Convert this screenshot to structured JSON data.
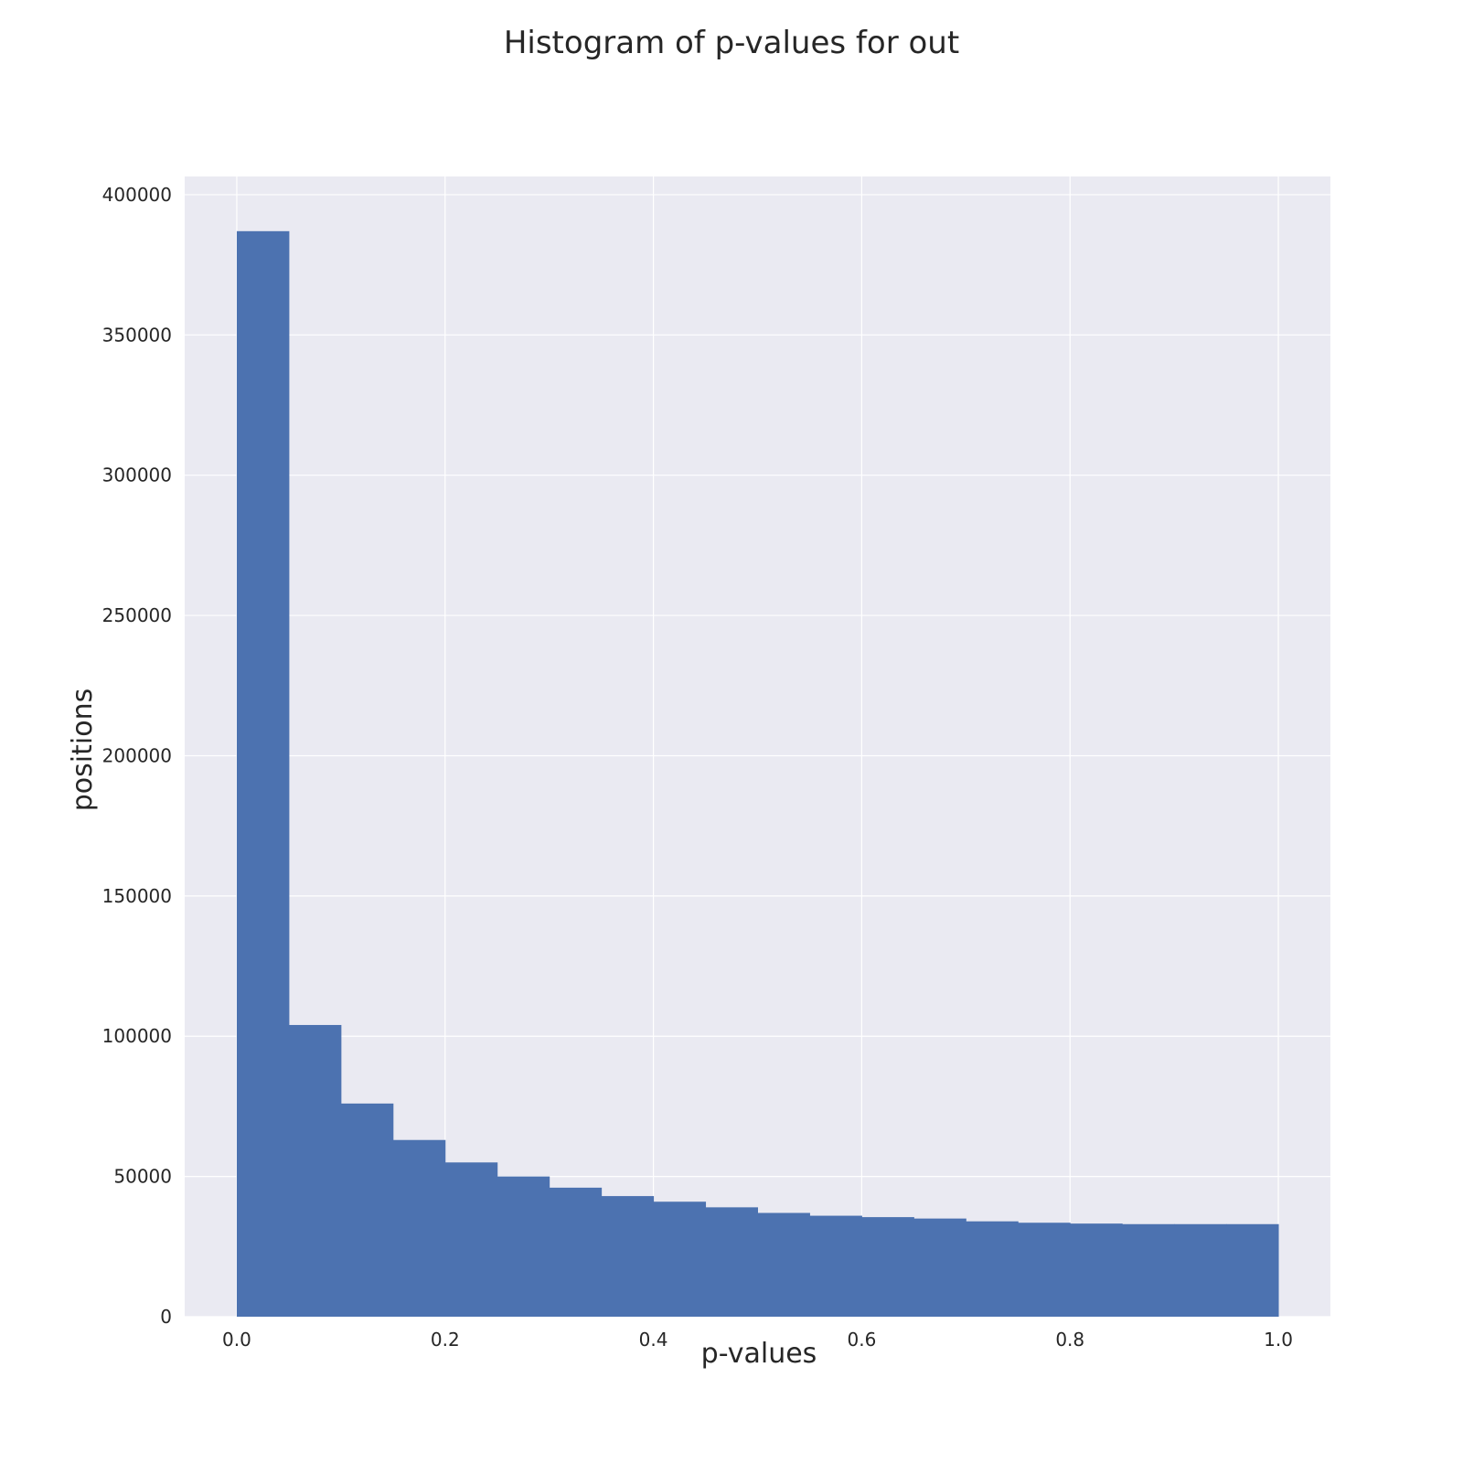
{
  "chart_data": {
    "type": "bar",
    "title": "Histogram of p-values for out",
    "xlabel": "p-values",
    "ylabel": "positions",
    "bin_edges": [
      0.0,
      0.05,
      0.1,
      0.15,
      0.2,
      0.25,
      0.3,
      0.35,
      0.4,
      0.45,
      0.5,
      0.55,
      0.6,
      0.65,
      0.7,
      0.75,
      0.8,
      0.85,
      0.9,
      0.95,
      1.0
    ],
    "values": [
      387000,
      104000,
      76000,
      63000,
      55000,
      50000,
      46000,
      43000,
      41000,
      39000,
      37000,
      36000,
      35500,
      35000,
      34000,
      33500,
      33200,
      33000,
      33000,
      33000
    ],
    "xlim": [
      -0.05,
      1.05
    ],
    "ylim": [
      0,
      406500
    ],
    "xticks": [
      0.0,
      0.2,
      0.4,
      0.6,
      0.8,
      1.0
    ],
    "xtick_labels": [
      "0.0",
      "0.2",
      "0.4",
      "0.6",
      "0.8",
      "1.0"
    ],
    "yticks": [
      0,
      50000,
      100000,
      150000,
      200000,
      250000,
      300000,
      350000,
      400000
    ],
    "ytick_labels": [
      "0",
      "50000",
      "100000",
      "150000",
      "200000",
      "250000",
      "300000",
      "350000",
      "400000"
    ],
    "grid": true,
    "bar_color": "#4c72b0",
    "background_color": "#eaeaf2"
  }
}
